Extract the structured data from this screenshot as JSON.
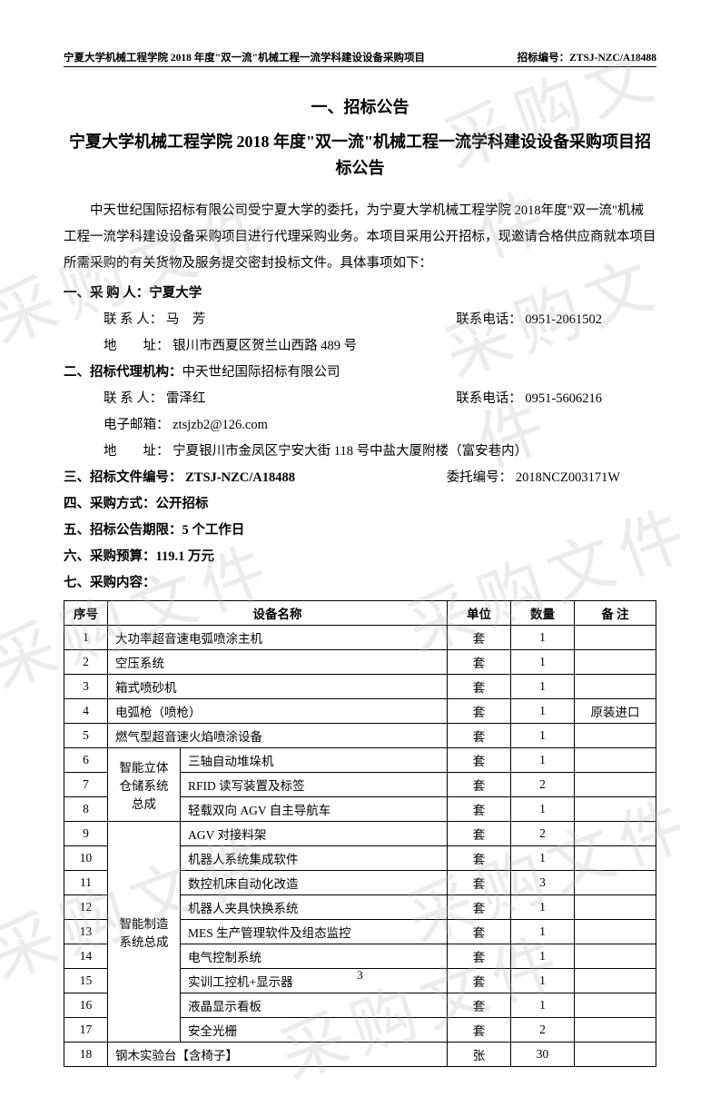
{
  "header": {
    "left": "宁夏大学机械工程学院 2018 年度\"双一流\"机械工程一流学科建设设备采购项目",
    "right": "招标编号：ZTSJ-NZC/A18488"
  },
  "section_number": "一、招标公告",
  "title": "宁夏大学机械工程学院 2018 年度\"双一流\"机械工程一流学科建设设备采购项目招标公告",
  "intro": "中天世纪国际招标有限公司受宁夏大学的委托，为宁夏大学机械工程学院 2018年度\"双一流\"机械工程一流学科建设设备采购项目进行代理采购业务。本项目采用公开招标，现邀请合格供应商就本项目所需采购的有关货物及服务提交密封投标文件。具体事项如下：",
  "purchaser": {
    "label": "一、采 购 人：",
    "name": "宁夏大学",
    "contact_label": "联 系 人：",
    "contact_name": "马　芳",
    "phone_label": "联系电话：",
    "phone": "0951-2061502",
    "addr_label": "地　　址：",
    "addr": "银川市西夏区贺兰山西路 489 号"
  },
  "agency": {
    "label": "二、招标代理机构：",
    "name": "中天世纪国际招标有限公司",
    "contact_label": "联 系 人：",
    "contact_name": "雷泽红",
    "phone_label": "联系电话：",
    "phone": "0951-5606216",
    "email_label": "电子邮箱：",
    "email": "ztsjzb2@126.com",
    "addr_label": "地　　址：",
    "addr": "宁夏银川市金凤区宁安大街 118 号中盐大厦附楼（富安巷内）"
  },
  "doc_no": {
    "label": "三、招标文件编号：",
    "value": "ZTSJ-NZC/A18488",
    "entrust_label": "委托编号：",
    "entrust_value": "2018NCZ003171W"
  },
  "method": {
    "label": "四、采购方式：",
    "value": "公开招标"
  },
  "period": {
    "label": "五、招标公告期限：",
    "value": "5 个工作日"
  },
  "budget": {
    "label": "六、采购预算：",
    "value": "119.1 万元"
  },
  "content_label": "七、采购内容：",
  "table": {
    "headers": [
      "序号",
      "设备名称",
      "单位",
      "数量",
      "备 注"
    ],
    "rows": [
      {
        "idx": "1",
        "name": "大功率超音速电弧喷涂主机",
        "unit": "套",
        "qty": "1",
        "note": ""
      },
      {
        "idx": "2",
        "name": "空压系统",
        "unit": "套",
        "qty": "1",
        "note": ""
      },
      {
        "idx": "3",
        "name": "箱式喷砂机",
        "unit": "套",
        "qty": "1",
        "note": ""
      },
      {
        "idx": "4",
        "name": "电弧枪（喷枪）",
        "unit": "套",
        "qty": "1",
        "note": "原装进口"
      },
      {
        "idx": "5",
        "name": "燃气型超音速火焰喷涂设备",
        "unit": "套",
        "qty": "1",
        "note": ""
      }
    ],
    "group1": {
      "label": "智能立体仓储系统总成",
      "rows": [
        {
          "idx": "6",
          "name": "三轴自动堆垛机",
          "unit": "套",
          "qty": "1",
          "note": ""
        },
        {
          "idx": "7",
          "name": "RFID 读写装置及标签",
          "unit": "套",
          "qty": "2",
          "note": ""
        },
        {
          "idx": "8",
          "name": "轻载双向 AGV 自主导航车",
          "unit": "套",
          "qty": "1",
          "note": ""
        }
      ]
    },
    "group2": {
      "label": "智能制造系统总成",
      "rows": [
        {
          "idx": "9",
          "name": "AGV 对接料架",
          "unit": "套",
          "qty": "2",
          "note": ""
        },
        {
          "idx": "10",
          "name": "机器人系统集成软件",
          "unit": "套",
          "qty": "1",
          "note": ""
        },
        {
          "idx": "11",
          "name": "数控机床自动化改造",
          "unit": "套",
          "qty": "3",
          "note": ""
        },
        {
          "idx": "12",
          "name": "机器人夹具快换系统",
          "unit": "套",
          "qty": "1",
          "note": ""
        },
        {
          "idx": "13",
          "name": "MES 生产管理软件及组态监控",
          "unit": "套",
          "qty": "1",
          "note": ""
        },
        {
          "idx": "14",
          "name": "电气控制系统",
          "unit": "套",
          "qty": "1",
          "note": ""
        },
        {
          "idx": "15",
          "name": "实训工控机+显示器",
          "unit": "套",
          "qty": "1",
          "note": ""
        },
        {
          "idx": "16",
          "name": "液晶显示看板",
          "unit": "套",
          "qty": "1",
          "note": ""
        },
        {
          "idx": "17",
          "name": "安全光栅",
          "unit": "套",
          "qty": "2",
          "note": ""
        }
      ]
    },
    "last_row": {
      "idx": "18",
      "name": "钢木实验台【含椅子】",
      "unit": "张",
      "qty": "30",
      "note": ""
    }
  },
  "page_number": "3",
  "watermark_text": "采购文件"
}
